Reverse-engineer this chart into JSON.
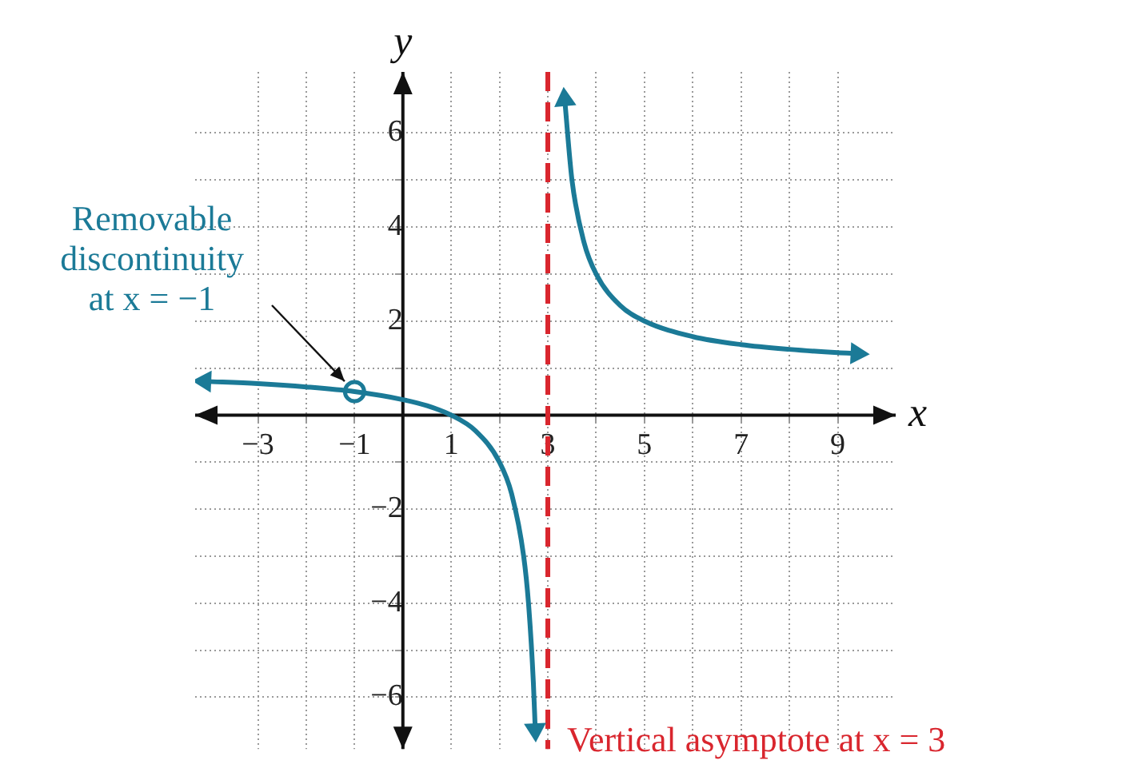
{
  "chart_data": {
    "type": "line",
    "xlabel": "x",
    "ylabel": "y",
    "xlim": [
      -4.3,
      10.2
    ],
    "ylim": [
      -7.1,
      7.3
    ],
    "xticks": [
      -3,
      {
        "value": -2,
        "label": null
      },
      -1,
      {
        "value": 0,
        "label": null
      },
      1,
      {
        "value": 2,
        "label": null
      },
      3,
      {
        "value": 4,
        "label": null
      },
      5,
      {
        "value": 6,
        "label": null
      },
      7,
      {
        "value": 8,
        "label": null
      },
      9
    ],
    "yticks": [
      -6,
      {
        "value": -5,
        "label": null
      },
      -4,
      {
        "value": -3,
        "label": null
      },
      -2,
      {
        "value": -1,
        "label": null
      },
      {
        "value": 0,
        "label": null
      },
      {
        "value": 1,
        "label": null
      },
      2,
      {
        "value": 3,
        "label": null
      },
      4,
      {
        "value": 5,
        "label": null
      },
      6
    ],
    "grid": true,
    "legend": false,
    "series": [
      {
        "color": "#1b7a97",
        "marker": "none",
        "x": [
          -4.1,
          -3,
          -2,
          -1,
          0,
          0.5,
          1,
          1.5,
          2,
          2.25,
          2.5,
          2.6,
          2.7,
          2.74
        ],
        "values": [
          0.72,
          0.67,
          0.6,
          0.5,
          0.33,
          0.2,
          0,
          -0.33,
          -1,
          -1.67,
          -3,
          -4,
          -5.67,
          -6.69
        ]
      },
      {
        "color": "#1b7a97",
        "marker": "none",
        "x": [
          3.35,
          3.5,
          3.75,
          4,
          4.5,
          5,
          6,
          7,
          8,
          9,
          9.4
        ],
        "values": [
          6.71,
          5,
          3.67,
          3,
          2.33,
          2,
          1.67,
          1.5,
          1.4,
          1.33,
          1.31
        ]
      },
      {
        "type": "scatter",
        "color": "#1b7a97",
        "marker": "circle",
        "x": [
          -1
        ],
        "values": [
          0.5
        ]
      }
    ],
    "ref_lines": [
      {
        "axis": "x",
        "value": 3,
        "label": "Vertical asymptote at x = 3",
        "color": "#d9262e",
        "line_style": "dashed"
      }
    ],
    "annotations": [
      {
        "text": "Removable discontinuity at x = −1",
        "x": -1,
        "y": 0.5
      }
    ]
  }
}
